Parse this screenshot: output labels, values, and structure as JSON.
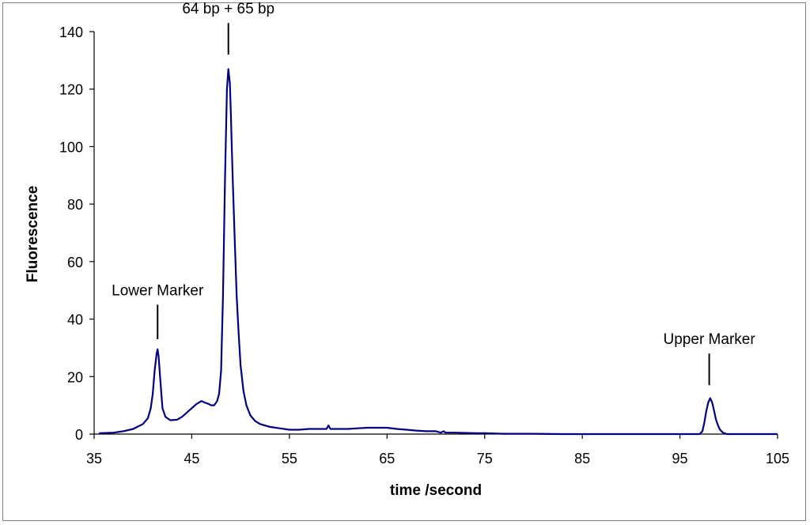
{
  "chart_data": {
    "type": "line",
    "title": "",
    "xlabel": "time /second",
    "ylabel": "Fluorescence",
    "xlim": [
      35,
      105
    ],
    "ylim": [
      0,
      140
    ],
    "xticks": [
      35,
      45,
      55,
      65,
      75,
      85,
      95,
      105
    ],
    "yticks": [
      0,
      20,
      40,
      60,
      80,
      100,
      120,
      140
    ],
    "grid": false,
    "legend": "none",
    "line_color": "#000080",
    "series": [
      {
        "x": [
          35.5,
          37.0,
          38.0,
          39.0,
          40.0,
          40.5,
          40.8,
          41.0,
          41.2,
          41.4,
          41.5,
          41.6,
          41.8,
          42.0,
          42.3,
          42.8,
          43.5,
          44.0,
          44.5,
          45.0,
          45.5,
          46.0,
          46.3,
          46.7,
          47.0,
          47.3,
          47.6,
          47.8,
          48.0,
          48.2,
          48.4,
          48.6,
          48.75,
          48.9,
          49.0,
          49.1,
          49.2,
          49.4,
          49.6,
          49.8,
          50.0,
          50.3,
          50.6,
          51.0,
          51.5,
          52.0,
          53.0,
          54.0,
          55.0,
          56.0,
          57.0,
          58.0,
          58.8,
          59.0,
          59.2,
          60.0,
          61.0,
          62.0,
          63.0,
          64.0,
          65.0,
          66.0,
          67.0,
          68.0,
          69.0,
          70.0,
          70.5,
          70.8,
          71.0,
          72.0,
          74.0,
          75.0,
          77.0,
          80.0,
          83.0,
          85.0,
          90.0,
          95.0,
          97.0,
          97.3,
          97.5,
          97.7,
          97.9,
          98.1,
          98.3,
          98.5,
          98.7,
          98.9,
          99.1,
          99.4,
          99.8,
          105.0
        ],
        "y": [
          0.3,
          0.5,
          1.0,
          1.8,
          3.5,
          5.5,
          9.0,
          14.0,
          22.0,
          28.0,
          29.5,
          27.0,
          18.0,
          9.0,
          6.0,
          4.8,
          5.0,
          6.0,
          7.5,
          9.0,
          10.5,
          11.5,
          11.0,
          10.5,
          10.0,
          10.0,
          11.5,
          14.0,
          22.0,
          48.0,
          88.0,
          120.0,
          127.0,
          122.0,
          112.0,
          100.0,
          88.0,
          68.0,
          48.0,
          35.0,
          24.0,
          15.0,
          10.0,
          6.5,
          4.5,
          3.5,
          2.5,
          2.0,
          1.5,
          1.5,
          1.8,
          1.8,
          1.8,
          3.0,
          1.8,
          1.8,
          1.8,
          2.0,
          2.2,
          2.2,
          2.2,
          1.8,
          1.5,
          1.2,
          1.0,
          1.0,
          0.5,
          1.0,
          0.5,
          0.5,
          0.3,
          0.3,
          0.1,
          0.1,
          0.0,
          0.0,
          0.0,
          0.0,
          0.0,
          1.0,
          4.0,
          8.0,
          11.0,
          12.5,
          11.0,
          8.0,
          5.0,
          3.0,
          1.5,
          0.5,
          0.0,
          0.0
        ]
      }
    ],
    "annotations": [
      {
        "text": "Lower Marker",
        "x": 41.5,
        "y_line_top": 45,
        "y_line_bottom": 33
      },
      {
        "text": "64 bp + 65 bp",
        "x": 48.75,
        "y_line_top": 143,
        "y_line_bottom": 132
      },
      {
        "text": "Upper Marker",
        "x": 98.0,
        "y_line_top": 28,
        "y_line_bottom": 17
      }
    ]
  }
}
